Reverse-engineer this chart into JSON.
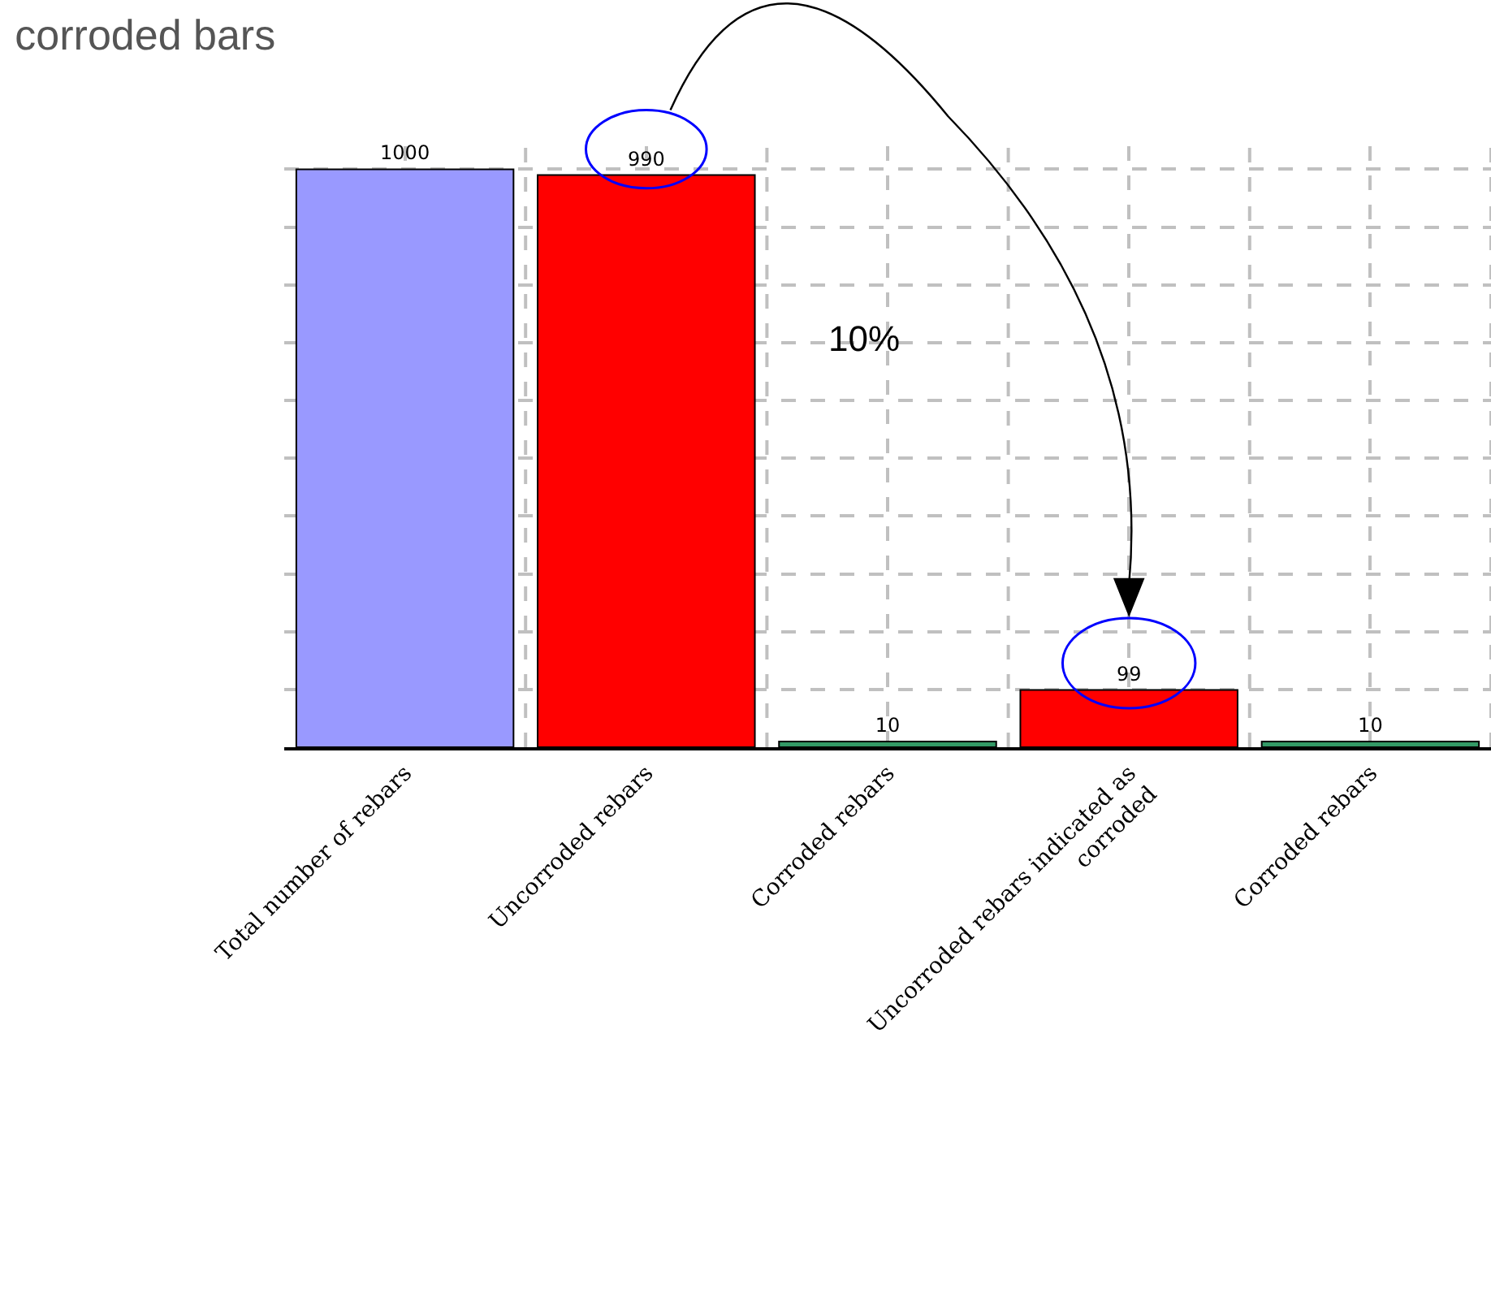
{
  "chart_data": {
    "type": "bar",
    "title": "corroded bars",
    "categories": [
      "Total number of rebars",
      "Uncorroded rebars",
      "Corroded rebars",
      "Uncorroded rebars indicated as corroded",
      "Corroded rebars"
    ],
    "values": [
      1000,
      990,
      10,
      99,
      10
    ],
    "colors": [
      "#9999ff",
      "#ff0000",
      "#339966",
      "#ff0000",
      "#339966"
    ],
    "data_labels": true,
    "ylim": [
      0,
      1040
    ],
    "yticks": [
      {
        "value": 0,
        "label": null
      },
      {
        "value": 100,
        "label": null
      },
      {
        "value": 200,
        "label": null
      },
      {
        "value": 300,
        "label": null
      },
      {
        "value": 400,
        "label": null
      },
      {
        "value": 500,
        "label": null
      },
      {
        "value": 600,
        "label": null
      },
      {
        "value": 700,
        "label": null
      },
      {
        "value": 800,
        "label": null
      },
      {
        "value": 900,
        "label": null
      },
      {
        "value": 1000,
        "label": null
      }
    ],
    "tick_labels": "x",
    "grid": true,
    "annotations": [
      "10%"
    ]
  }
}
